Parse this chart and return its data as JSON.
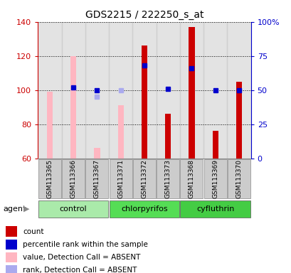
{
  "title": "GDS2215 / 222250_s_at",
  "samples": [
    "GSM113365",
    "GSM113366",
    "GSM113367",
    "GSM113371",
    "GSM113372",
    "GSM113373",
    "GSM113368",
    "GSM113369",
    "GSM113370"
  ],
  "group_info": [
    {
      "name": "control",
      "start": 0,
      "end": 2,
      "color": "#AAEAAA"
    },
    {
      "name": "chlorpyrifos",
      "start": 3,
      "end": 5,
      "color": "#55DD55"
    },
    {
      "name": "cyfluthrin",
      "start": 6,
      "end": 8,
      "color": "#44CC44"
    }
  ],
  "ylim_left": [
    60,
    140
  ],
  "ylim_right": [
    0,
    100
  ],
  "yticks_left": [
    60,
    80,
    100,
    120,
    140
  ],
  "yticks_right": [
    0,
    25,
    50,
    75,
    100
  ],
  "ytick_labels_right": [
    "0",
    "25",
    "50",
    "75",
    "100%"
  ],
  "red_bars": {
    "indices": [
      4,
      5,
      6,
      7,
      8
    ],
    "values": [
      126,
      86,
      137,
      76,
      105
    ]
  },
  "pink_bars": {
    "indices": [
      0,
      1,
      2,
      3
    ],
    "values": [
      99,
      120,
      66,
      91
    ]
  },
  "blue_squares": {
    "indices": [
      1,
      2,
      4,
      5,
      6,
      7,
      8
    ],
    "values_pct": [
      52,
      50,
      68,
      51,
      66,
      50,
      50
    ]
  },
  "lightblue_squares": {
    "indices": [
      2,
      3
    ],
    "values_pct": [
      45,
      50
    ]
  },
  "left_axis_color": "#CC0000",
  "right_axis_color": "#0000CC",
  "red_bar_color": "#CC0000",
  "pink_bar_color": "#FFB6C1",
  "blue_sq_color": "#0000CC",
  "lightblue_sq_color": "#AAAAEE",
  "sample_bg_color": "#CCCCCC",
  "legend_items": [
    {
      "label": "count",
      "color": "#CC0000"
    },
    {
      "label": "percentile rank within the sample",
      "color": "#0000CC"
    },
    {
      "label": "value, Detection Call = ABSENT",
      "color": "#FFB6C1"
    },
    {
      "label": "rank, Detection Call = ABSENT",
      "color": "#AAAAEE"
    }
  ]
}
